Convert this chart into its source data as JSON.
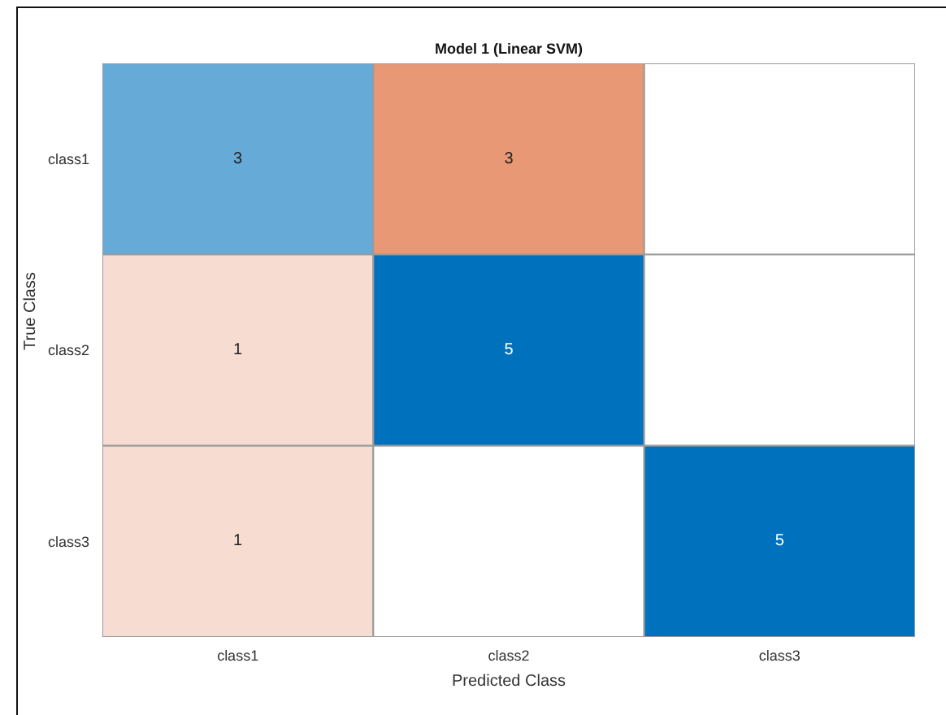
{
  "chart_data": {
    "type": "heatmap",
    "data_labels": true,
    "title": "Model 1 (Linear SVM)",
    "xlabel": "Predicted Class",
    "ylabel": "True Class",
    "categories": [
      "class1",
      "class2",
      "class3"
    ],
    "y_categories": [
      "class1",
      "class2",
      "class3"
    ],
    "cells": [
      [
        3,
        3,
        null
      ],
      [
        1,
        5,
        null
      ],
      [
        1,
        null,
        5
      ]
    ]
  }
}
